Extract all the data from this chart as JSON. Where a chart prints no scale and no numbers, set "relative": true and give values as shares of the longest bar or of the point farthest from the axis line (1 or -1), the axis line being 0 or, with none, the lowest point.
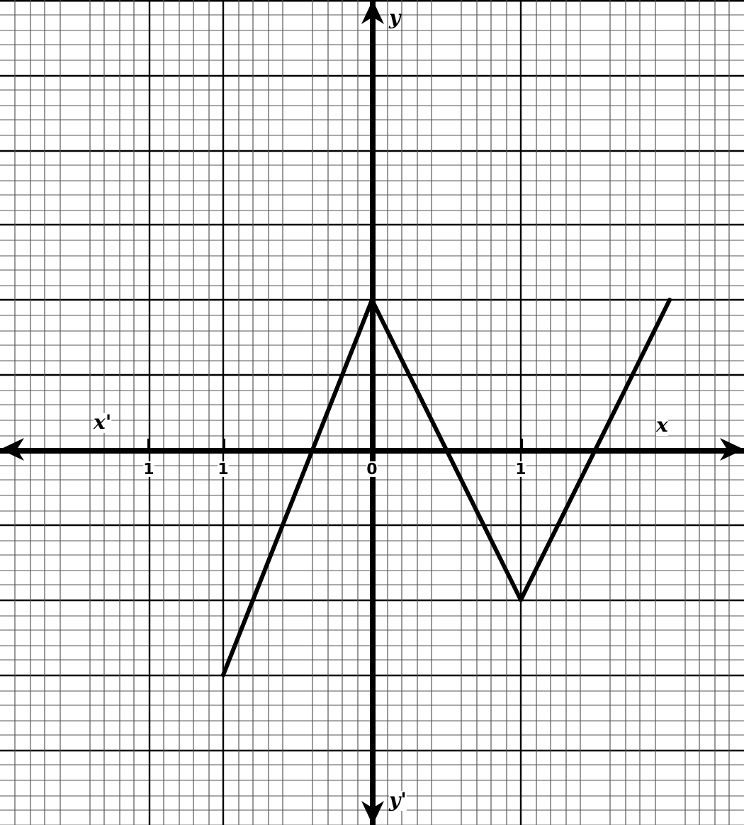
{
  "chart_data": {
    "type": "line",
    "annotations": [
      "x",
      "y",
      "x'",
      "y'"
    ],
    "x": [
      -1,
      0,
      1,
      2
    ],
    "series": [
      {
        "color": "#000000",
        "values": [
          -1,
          0.6667,
          -0.6667,
          0.6667
        ]
      }
    ],
    "relative": true,
    "xlim": [
      -2.5,
      2.5
    ],
    "xticks": [
      {
        "value": -1.5,
        "label": "1"
      },
      {
        "value": -1,
        "label": "1"
      },
      {
        "value": 0,
        "label": "0"
      },
      {
        "value": 1,
        "label": "1"
      }
    ],
    "tick_labels": "x",
    "grid": true,
    "marker": "none",
    "line_style": "solid"
  }
}
